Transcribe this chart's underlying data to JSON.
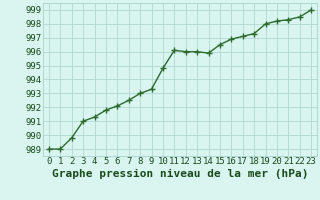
{
  "x": [
    0,
    1,
    2,
    3,
    4,
    5,
    6,
    7,
    8,
    9,
    10,
    11,
    12,
    13,
    14,
    15,
    16,
    17,
    18,
    19,
    20,
    21,
    22,
    23
  ],
  "y": [
    989.0,
    989.0,
    989.8,
    991.0,
    991.3,
    991.8,
    992.1,
    992.5,
    993.0,
    993.3,
    994.8,
    996.1,
    996.0,
    996.0,
    995.9,
    996.5,
    996.9,
    997.1,
    997.3,
    998.0,
    998.2,
    998.3,
    998.5,
    999.0
  ],
  "line_color": "#2d6a2d",
  "marker": "+",
  "marker_size": 4,
  "marker_color": "#2d6a2d",
  "bg_color": "#d8f5f0",
  "grid_color": "#b0d8d0",
  "xlabel": "Graphe pression niveau de la mer (hPa)",
  "xlabel_fontsize": 8,
  "xlabel_color": "#1a4a1a",
  "ylabel_ticks": [
    989,
    990,
    991,
    992,
    993,
    994,
    995,
    996,
    997,
    998,
    999
  ],
  "xlim": [
    -0.5,
    23.5
  ],
  "ylim": [
    988.5,
    999.5
  ],
  "tick_fontsize": 6.5,
  "tick_color": "#1a4a1a",
  "linewidth": 1.0
}
